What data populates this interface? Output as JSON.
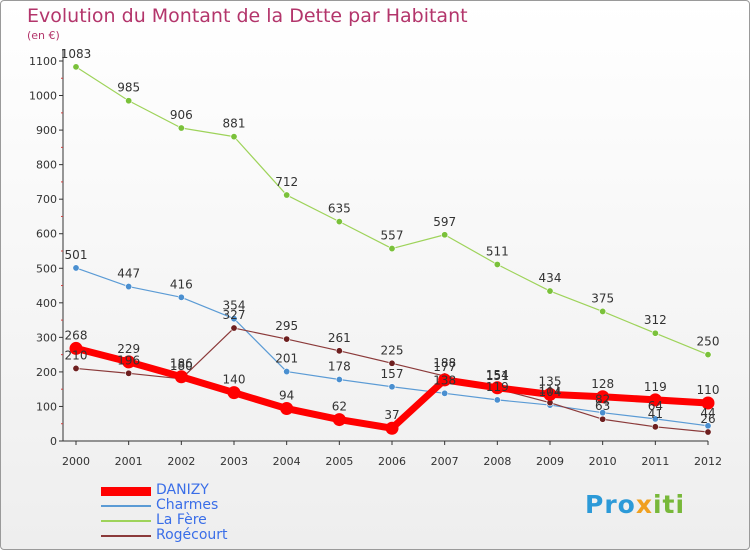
{
  "title": "Evolution du Montant de la Dette par Habitant",
  "subtitle": "(en €)",
  "logo": {
    "part1": "Pro",
    "part2": "x",
    "part3": "iti"
  },
  "chart_data": {
    "type": "line",
    "x": [
      2000,
      2001,
      2002,
      2003,
      2004,
      2005,
      2006,
      2007,
      2008,
      2009,
      2010,
      2011,
      2012
    ],
    "y_ticks": [
      0,
      100,
      200,
      300,
      400,
      500,
      600,
      700,
      800,
      900,
      1000,
      1100
    ],
    "ylim": [
      0,
      1100
    ],
    "grid": false,
    "legend_placement": "bottom-left",
    "series": [
      {
        "name": "Charmes",
        "color": "#5b9bd5",
        "dot": "#4a8fd0",
        "line_width": 1.2,
        "dot_r": 3.2,
        "values": [
          501,
          447,
          416,
          354,
          201,
          178,
          157,
          138,
          119,
          104,
          82,
          64,
          44
        ],
        "labels": [
          "501",
          "447",
          "416",
          "354",
          "201",
          "178",
          "157",
          "138",
          "119",
          "104",
          "82",
          "64",
          "44"
        ]
      },
      {
        "name": "La Fère",
        "color": "#9ed35a",
        "dot": "#7ac13a",
        "line_width": 1.2,
        "dot_r": 3.2,
        "values": [
          1083,
          985,
          906,
          881,
          712,
          635,
          557,
          597,
          511,
          434,
          375,
          312,
          250
        ],
        "labels": [
          "1083",
          "985",
          "906",
          "881",
          "712",
          "635",
          "557",
          "597",
          "511",
          "434",
          "375",
          "312",
          "250"
        ]
      },
      {
        "name": "Rogécourt",
        "color": "#8b3a3a",
        "dot": "#6e1f1f",
        "line_width": 1.2,
        "dot_r": 3.2,
        "values": [
          210,
          196,
          180,
          327,
          295,
          261,
          225,
          188,
          151,
          111,
          63,
          41,
          26
        ],
        "labels": [
          "210",
          "196",
          "180",
          "327",
          "295",
          "261",
          "225",
          "188",
          "151",
          "111",
          "63",
          "41",
          "26"
        ]
      },
      {
        "name": "DANIZY",
        "color": "#ff0000",
        "dot": "#ff0000",
        "line_width": 7,
        "dot_r": 6.5,
        "values": [
          268,
          229,
          186,
          140,
          94,
          62,
          37,
          177,
          154,
          135,
          128,
          119,
          110
        ],
        "labels": [
          "268",
          "229",
          "186",
          "140",
          "94",
          "62",
          "37",
          "177",
          "154",
          "135",
          "128",
          "119",
          "110"
        ]
      }
    ],
    "legend_order": [
      "DANIZY",
      "Charmes",
      "La Fère",
      "Rogécourt"
    ]
  }
}
